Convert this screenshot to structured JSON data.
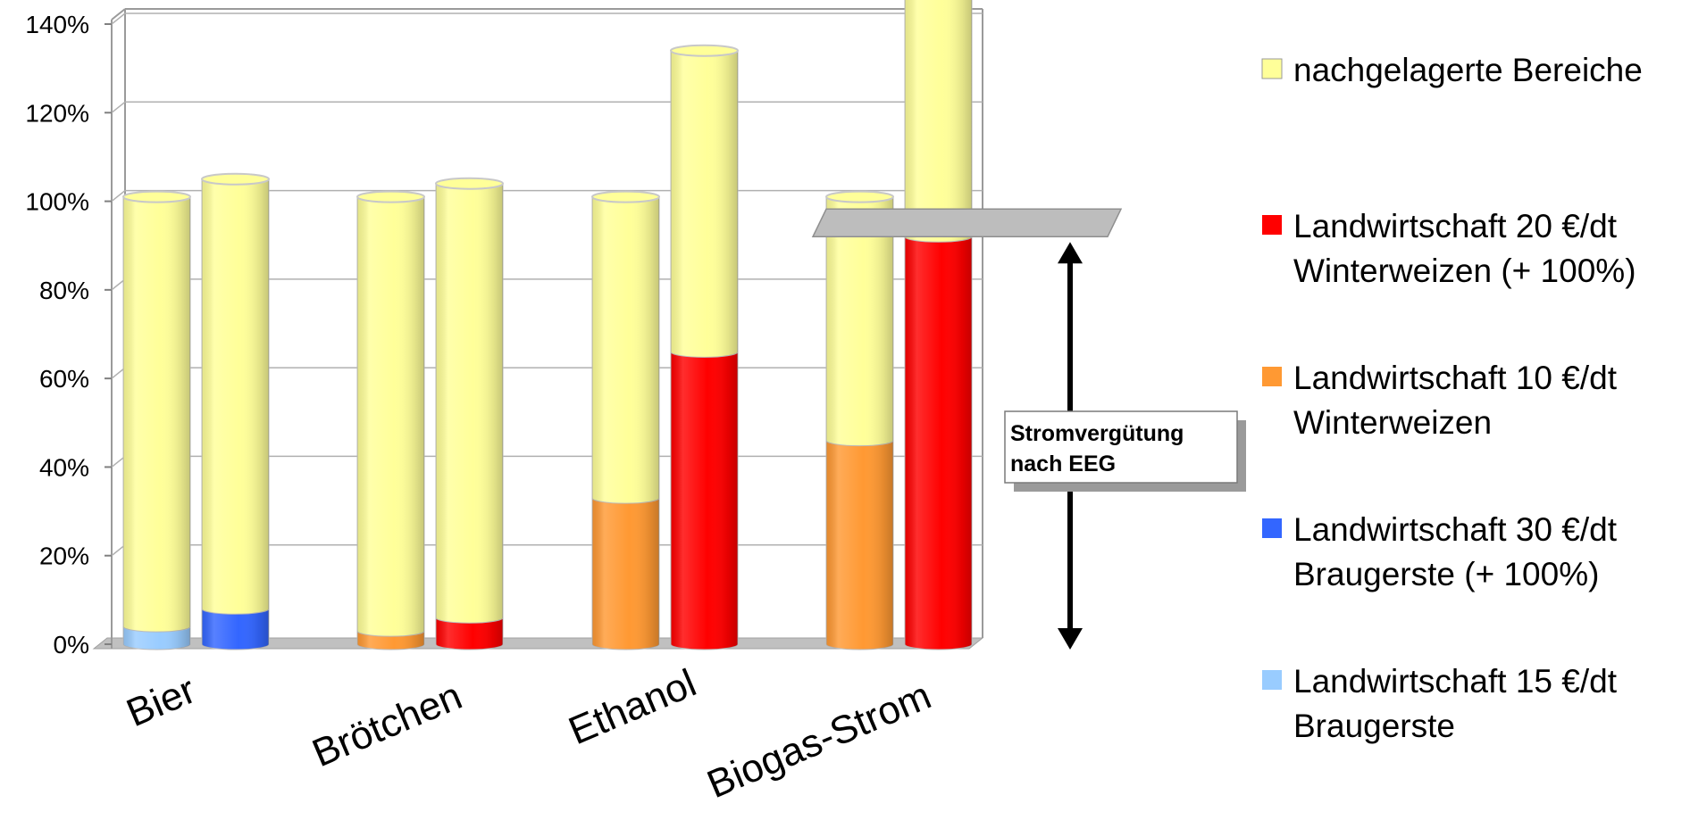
{
  "chart_data": {
    "type": "bar",
    "stacked": true,
    "categories": [
      "Bier",
      "Brötchen",
      "Ethanol",
      "Biogas-Strom"
    ],
    "bars": [
      {
        "category": "Bier",
        "segments": [
          {
            "series": "Landwirtschaft 15 €/dt Braugerste",
            "value": 4
          },
          {
            "series": "nachgelagerte Bereiche",
            "value": 97
          }
        ]
      },
      {
        "category": "Bier",
        "segments": [
          {
            "series": "Landwirtschaft 30 €/dt Braugerste (+ 100%)",
            "value": 8
          },
          {
            "series": "nachgelagerte Bereiche",
            "value": 97
          }
        ]
      },
      {
        "category": "Brötchen",
        "segments": [
          {
            "series": "Landwirtschaft 10 €/dt Winterweizen",
            "value": 3
          },
          {
            "series": "nachgelagerte Bereiche",
            "value": 98
          }
        ]
      },
      {
        "category": "Brötchen",
        "segments": [
          {
            "series": "Landwirtschaft 20 €/dt Winterweizen (+ 100%)",
            "value": 6
          },
          {
            "series": "nachgelagerte Bereiche",
            "value": 98
          }
        ]
      },
      {
        "category": "Ethanol",
        "segments": [
          {
            "series": "Landwirtschaft 10 €/dt Winterweizen",
            "value": 33
          },
          {
            "series": "nachgelagerte Bereiche",
            "value": 68
          }
        ]
      },
      {
        "category": "Ethanol",
        "segments": [
          {
            "series": "Landwirtschaft 20 €/dt Winterweizen (+ 100%)",
            "value": 66
          },
          {
            "series": "nachgelagerte Bereiche",
            "value": 68
          }
        ]
      },
      {
        "category": "Biogas-Strom",
        "segments": [
          {
            "series": "Landwirtschaft 10 €/dt Winterweizen",
            "value": 46
          },
          {
            "series": "nachgelagerte Bereiche",
            "value": 55
          }
        ]
      },
      {
        "category": "Biogas-Strom",
        "segments": [
          {
            "series": "Landwirtschaft 20 €/dt Winterweizen (+ 100%)",
            "value": 92
          },
          {
            "series": "nachgelagerte Bereiche",
            "value": 56
          }
        ]
      }
    ],
    "series": [
      {
        "name": "nachgelagerte Bereiche",
        "color": "#ffff99"
      },
      {
        "name": "Landwirtschaft 20 €/dt Winterweizen (+ 100%)",
        "color": "#ff0000"
      },
      {
        "name": "Landwirtschaft 10 €/dt Winterweizen",
        "color": "#ff9933"
      },
      {
        "name": "Landwirtschaft 30 €/dt Braugerste (+ 100%)",
        "color": "#3366ff"
      },
      {
        "name": "Landwirtschaft 15 €/dt Braugerste",
        "color": "#99ccff"
      }
    ],
    "y_ticks": [
      "0%",
      "20%",
      "40%",
      "60%",
      "80%",
      "100%",
      "120%",
      "140%"
    ],
    "ylim": [
      0,
      140
    ],
    "grid": true,
    "legend_position": "right",
    "legend": [
      {
        "lines": [
          "nachgelagerte Bereiche"
        ],
        "color": "#ffff99"
      },
      {
        "lines": [
          "Landwirtschaft 20 €/dt",
          "Winterweizen (+ 100%)"
        ],
        "color": "#ff0000"
      },
      {
        "lines": [
          "Landwirtschaft 10 €/dt",
          "Winterweizen"
        ],
        "color": "#ff9933"
      },
      {
        "lines": [
          "Landwirtschaft 30 €/dt",
          "Braugerste (+ 100%)"
        ],
        "color": "#3366ff"
      },
      {
        "lines": [
          "Landwirtschaft 15 €/dt",
          "Braugerste"
        ],
        "color": "#99ccff"
      }
    ],
    "annotation": {
      "lines": [
        "Stromvergütung",
        "nach EEG"
      ],
      "level": 92
    }
  }
}
